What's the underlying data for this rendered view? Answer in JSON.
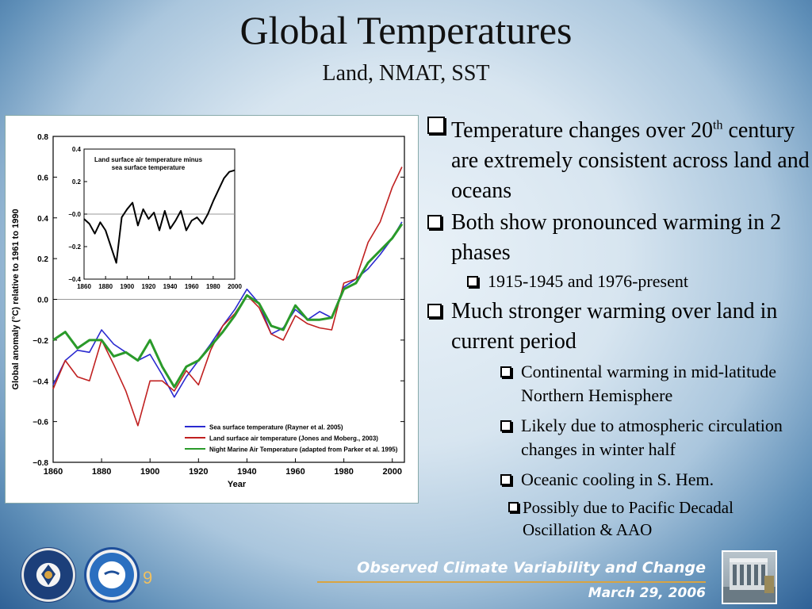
{
  "slide": {
    "title": "Global Temperatures",
    "subtitle": "Land, NMAT, SST",
    "page_number": "9",
    "footer_title": "Observed Climate Variability and Change",
    "footer_date": "March 29, 2006",
    "logos": [
      "commerce-seal-icon",
      "noaa-logo-icon",
      "building-photo"
    ]
  },
  "bullets": {
    "b1_main": "Temperature changes over 20",
    "b1_sup": "th",
    "b1_rest": " century are extremely consistent across land and oceans",
    "b2": "Both show pronounced warming in 2 phases",
    "b2_sub": "1915-1945 and 1976-present",
    "b3": "Much stronger warming over land in current period",
    "b3_sub1": "Continental warming in mid-latitude Northern Hemisphere",
    "b3_sub2": "Likely due to atmospheric circulation changes in winter half",
    "b3_sub3": "Oceanic cooling in S. Hem.",
    "b3_sub3_sub": "Possibly due to Pacific Decadal Oscillation & AAO"
  },
  "chart_data": [
    {
      "type": "line",
      "xlabel": "Year",
      "ylabel": "Global anomaly (°C) relative to 1961 to 1990",
      "xlim": [
        1860,
        2005
      ],
      "ylim": [
        -0.8,
        0.8
      ],
      "xticks": [
        "1860",
        "1880",
        "1900",
        "1920",
        "1940",
        "1960",
        "1980",
        "2000"
      ],
      "yticks": [
        "0.8",
        "0.6",
        "0.4",
        "0.2",
        "0.0",
        "−0.2",
        "−0.4",
        "−0.6",
        "−0.8"
      ],
      "legend_position": "bottom-right",
      "x": [
        1860,
        1865,
        1870,
        1875,
        1880,
        1885,
        1890,
        1895,
        1900,
        1905,
        1910,
        1915,
        1920,
        1925,
        1930,
        1935,
        1940,
        1945,
        1950,
        1955,
        1960,
        1965,
        1970,
        1975,
        1980,
        1985,
        1990,
        1995,
        2000,
        2004
      ],
      "series": [
        {
          "name": "Sea surface temperature (Rayner et al. 2005)",
          "color": "#2a2ad0",
          "values": [
            -0.42,
            -0.3,
            -0.25,
            -0.26,
            -0.15,
            -0.22,
            -0.26,
            -0.3,
            -0.27,
            -0.37,
            -0.48,
            -0.38,
            -0.3,
            -0.22,
            -0.13,
            -0.05,
            0.05,
            -0.02,
            -0.17,
            -0.14,
            -0.05,
            -0.1,
            -0.06,
            -0.09,
            0.06,
            0.1,
            0.15,
            0.22,
            0.3,
            0.38
          ]
        },
        {
          "name": "Land surface air temperature (Jones and Moberg., 2003)",
          "color": "#c02020",
          "values": [
            -0.44,
            -0.3,
            -0.38,
            -0.4,
            -0.2,
            -0.32,
            -0.45,
            -0.62,
            -0.4,
            -0.4,
            -0.45,
            -0.35,
            -0.42,
            -0.25,
            -0.13,
            -0.07,
            0.02,
            -0.04,
            -0.17,
            -0.2,
            -0.08,
            -0.12,
            -0.14,
            -0.15,
            0.08,
            0.1,
            0.28,
            0.38,
            0.55,
            0.65
          ]
        },
        {
          "name": "Night Marine Air Temperature (adapted from Parker et al. 1995)",
          "color": "#2a9a2a",
          "values": [
            -0.2,
            -0.16,
            -0.24,
            -0.2,
            -0.2,
            -0.28,
            -0.26,
            -0.3,
            -0.2,
            -0.33,
            -0.43,
            -0.33,
            -0.3,
            -0.23,
            -0.16,
            -0.08,
            0.02,
            -0.02,
            -0.13,
            -0.15,
            -0.03,
            -0.1,
            -0.1,
            -0.09,
            0.05,
            0.08,
            0.18,
            0.24,
            0.3,
            0.37
          ]
        }
      ]
    },
    {
      "type": "line",
      "title": "Land surface air temperature minus sea surface temperature",
      "xlim": [
        1860,
        2000
      ],
      "ylim": [
        -0.4,
        0.4
      ],
      "xticks": [
        "1860",
        "1880",
        "1900",
        "1920",
        "1940",
        "1960",
        "1980",
        "2000"
      ],
      "yticks": [
        "0.4",
        "0.2",
        "−0.0",
        "−0.2",
        "−0.4"
      ],
      "x": [
        1860,
        1865,
        1870,
        1875,
        1880,
        1885,
        1890,
        1895,
        1900,
        1905,
        1910,
        1915,
        1920,
        1925,
        1930,
        1935,
        1940,
        1945,
        1950,
        1955,
        1960,
        1965,
        1970,
        1975,
        1980,
        1985,
        1990,
        1995,
        2000
      ],
      "series": [
        {
          "name": "",
          "color": "#000000",
          "values": [
            -0.03,
            -0.06,
            -0.12,
            -0.05,
            -0.1,
            -0.2,
            -0.3,
            -0.02,
            0.03,
            0.07,
            -0.07,
            0.03,
            -0.03,
            0.01,
            -0.1,
            0.02,
            -0.09,
            -0.04,
            0.02,
            -0.1,
            -0.04,
            -0.02,
            -0.06,
            0.0,
            0.08,
            0.15,
            0.22,
            0.26,
            0.27
          ]
        }
      ]
    }
  ]
}
